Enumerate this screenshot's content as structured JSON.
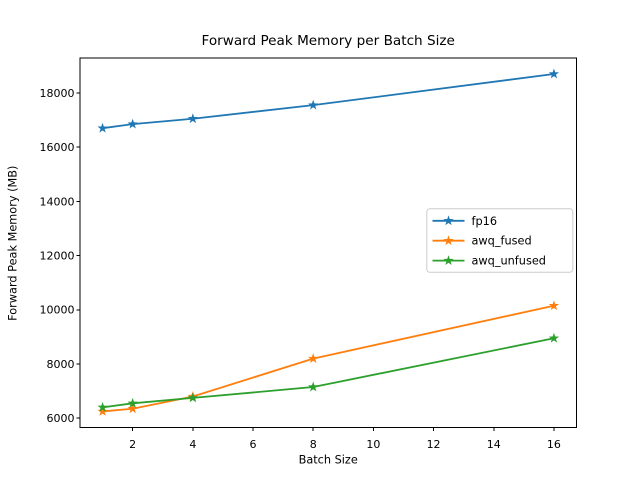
{
  "figure": {
    "background": "#ffffff"
  },
  "chart_data": {
    "type": "line",
    "title": "Forward Peak Memory per Batch Size",
    "xlabel": "Batch Size",
    "ylabel": "Forward Peak Memory (MB)",
    "x": [
      1,
      2,
      4,
      8,
      16
    ],
    "series": [
      {
        "name": "fp16",
        "color": "#1f77b4",
        "marker": "star",
        "values": [
          16700,
          16850,
          17050,
          17550,
          18700
        ]
      },
      {
        "name": "awq_fused",
        "color": "#ff7f0e",
        "marker": "star",
        "values": [
          6250,
          6350,
          6800,
          8200,
          10150
        ]
      },
      {
        "name": "awq_unfused",
        "color": "#2ca02c",
        "marker": "star",
        "values": [
          6400,
          6550,
          6750,
          7150,
          8950
        ]
      }
    ],
    "xticks": [
      2,
      4,
      6,
      8,
      10,
      12,
      14,
      16
    ],
    "yticks": [
      6000,
      8000,
      10000,
      12000,
      14000,
      16000,
      18000
    ],
    "xlim": [
      0.25,
      16.75
    ],
    "ylim": [
      5650,
      19290
    ],
    "grid": false,
    "legend": {
      "position": "center-right",
      "labels": [
        "fp16",
        "awq_fused",
        "awq_unfused"
      ],
      "border_color": "#cccccc",
      "background": "#ffffff"
    },
    "axis_color": "#000000",
    "text_color": "#000000"
  }
}
